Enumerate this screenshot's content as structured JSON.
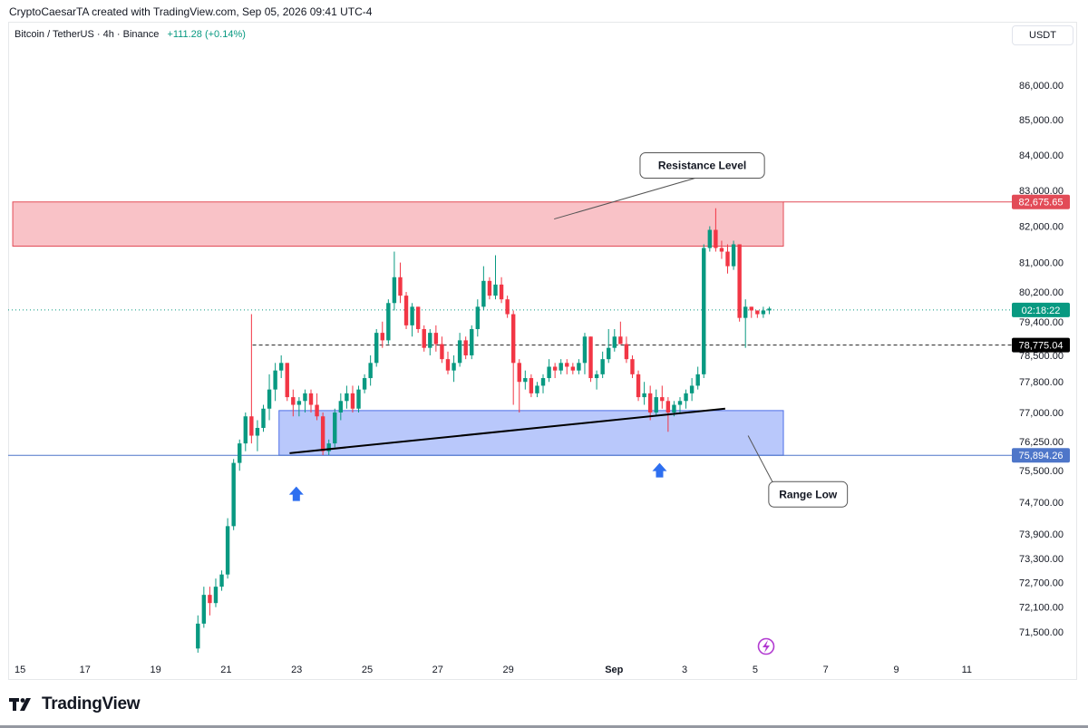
{
  "header": {
    "caption": "CryptoCaesarTA created with TradingView.com, Sep 05, 2026 09:41 UTC-4",
    "symbol": "Bitcoin / TetherUS · 4h · Binance",
    "change": "+111.28 (+0.14%)",
    "currency": "USDT"
  },
  "brand": {
    "name": "TradingView"
  },
  "colors": {
    "up": "#089981",
    "down": "#f23645",
    "resistance_fill": "#f9c2c7",
    "resistance_border": "#e24b57",
    "range_fill": "#b9c8fb",
    "range_border": "#4d6ee8",
    "blue_line": "#4e76c9",
    "arrow": "#2e6ff0"
  },
  "chart_data": {
    "type": "candlestick",
    "y_scale": "log",
    "ylim": [
      71000,
      87300
    ],
    "x_ticks": [
      {
        "label": "15",
        "d": 15
      },
      {
        "label": "17",
        "d": 17
      },
      {
        "label": "19",
        "d": 19
      },
      {
        "label": "21",
        "d": 21
      },
      {
        "label": "23",
        "d": 23
      },
      {
        "label": "25",
        "d": 25
      },
      {
        "label": "27",
        "d": 27
      },
      {
        "label": "29",
        "d": 29
      },
      {
        "label": "Sep",
        "d": 32
      },
      {
        "label": "3",
        "d": 34
      },
      {
        "label": "5",
        "d": 36
      },
      {
        "label": "7",
        "d": 38
      },
      {
        "label": "9",
        "d": 40
      },
      {
        "label": "11",
        "d": 42
      }
    ],
    "y_ticks": [
      "86,000.00",
      "85,000.00",
      "84,000.00",
      "83,000.00",
      "82,000.00",
      "81,000.00",
      "80,200.00",
      "79,400.00",
      "78,500.00",
      "77,800.00",
      "77,000.00",
      "76,250.00",
      "75,500.00",
      "74,700.00",
      "73,900.00",
      "73,300.00",
      "72,700.00",
      "72,100.00",
      "71,500.00"
    ],
    "price_labels": [
      {
        "text": "82,675.65",
        "value": 82675.65,
        "style": "resistance"
      },
      {
        "text": "02:18:22",
        "value": 79714,
        "style": "countdown"
      },
      {
        "text": "78,775.04",
        "value": 78775.04,
        "style": "dashed"
      },
      {
        "text": "75,894.26",
        "value": 75894.26,
        "style": "range"
      }
    ],
    "candles": [
      [
        71100,
        71900,
        71000,
        71700
      ],
      [
        71700,
        72600,
        71600,
        72400
      ],
      [
        72400,
        72600,
        71900,
        72200
      ],
      [
        72200,
        72800,
        72100,
        72600
      ],
      [
        72600,
        73000,
        72500,
        72900
      ],
      [
        72900,
        74300,
        72800,
        74100
      ],
      [
        74100,
        75800,
        74000,
        75700
      ],
      [
        75700,
        76300,
        75500,
        76200
      ],
      [
        76200,
        77000,
        76000,
        76900
      ],
      [
        76900,
        79600,
        76200,
        76400
      ],
      [
        76400,
        76800,
        76000,
        76600
      ],
      [
        76600,
        77200,
        76500,
        77100
      ],
      [
        77100,
        78000,
        76800,
        77600
      ],
      [
        77600,
        78300,
        77300,
        78100
      ],
      [
        78100,
        78500,
        77900,
        78300
      ],
      [
        78300,
        78300,
        77300,
        77400
      ],
      [
        77400,
        77600,
        76900,
        77200
      ],
      [
        77200,
        77400,
        76900,
        77300
      ],
      [
        77300,
        77600,
        77000,
        77500
      ],
      [
        77500,
        77600,
        77000,
        77200
      ],
      [
        77200,
        77500,
        76800,
        76900
      ],
      [
        76900,
        77000,
        75900,
        76000
      ],
      [
        76000,
        76300,
        75900,
        76200
      ],
      [
        76200,
        77100,
        76100,
        77000
      ],
      [
        77000,
        77500,
        76800,
        77300
      ],
      [
        77300,
        77700,
        77100,
        77500
      ],
      [
        77500,
        77700,
        77000,
        77100
      ],
      [
        77100,
        77700,
        77000,
        77600
      ],
      [
        77600,
        78000,
        77500,
        77900
      ],
      [
        77900,
        78500,
        77700,
        78300
      ],
      [
        78300,
        79200,
        78200,
        79100
      ],
      [
        79100,
        79400,
        78700,
        78900
      ],
      [
        78900,
        80000,
        78800,
        79900
      ],
      [
        79900,
        81300,
        79700,
        80600
      ],
      [
        80600,
        81000,
        79900,
        80100
      ],
      [
        80100,
        80200,
        79200,
        79300
      ],
      [
        79300,
        79900,
        79000,
        79800
      ],
      [
        79800,
        79800,
        79100,
        79200
      ],
      [
        79200,
        79300,
        78600,
        78700
      ],
      [
        78700,
        79200,
        78500,
        79100
      ],
      [
        79100,
        79300,
        78600,
        78800
      ],
      [
        78800,
        79000,
        78300,
        78400
      ],
      [
        78400,
        78600,
        78000,
        78100
      ],
      [
        78100,
        78500,
        77800,
        78300
      ],
      [
        78300,
        79100,
        78200,
        78900
      ],
      [
        78900,
        79000,
        78400,
        78500
      ],
      [
        78500,
        79300,
        78400,
        79200
      ],
      [
        79200,
        80000,
        79000,
        79800
      ],
      [
        79800,
        80900,
        79700,
        80500
      ],
      [
        80500,
        80600,
        80000,
        80100
      ],
      [
        80100,
        81200,
        80000,
        80400
      ],
      [
        80400,
        80600,
        79900,
        80000
      ],
      [
        80000,
        80100,
        79500,
        79600
      ],
      [
        79600,
        79700,
        77200,
        78300
      ],
      [
        78300,
        78400,
        77000,
        77800
      ],
      [
        77800,
        78100,
        77600,
        77900
      ],
      [
        77900,
        78000,
        77400,
        77500
      ],
      [
        77500,
        77800,
        77400,
        77700
      ],
      [
        77700,
        78000,
        77500,
        77900
      ],
      [
        77900,
        78400,
        77800,
        78200
      ],
      [
        78200,
        78300,
        77900,
        78100
      ],
      [
        78100,
        78400,
        78000,
        78300
      ],
      [
        78300,
        78400,
        78000,
        78200
      ],
      [
        78200,
        78300,
        78000,
        78100
      ],
      [
        78100,
        78400,
        78000,
        78300
      ],
      [
        78300,
        79100,
        78000,
        79000
      ],
      [
        79000,
        79000,
        77800,
        77900
      ],
      [
        77900,
        78100,
        77600,
        78000
      ],
      [
        78000,
        78600,
        77900,
        78400
      ],
      [
        78400,
        79200,
        78300,
        78700
      ],
      [
        78700,
        79200,
        78600,
        79000
      ],
      [
        79000,
        79400,
        78800,
        78800
      ],
      [
        78800,
        79000,
        78300,
        78400
      ],
      [
        78400,
        78500,
        77900,
        78000
      ],
      [
        78000,
        78100,
        77300,
        77400
      ],
      [
        77400,
        77800,
        77200,
        77500
      ],
      [
        77500,
        77700,
        76800,
        77000
      ],
      [
        77000,
        77600,
        76900,
        77400
      ],
      [
        77400,
        77700,
        77100,
        77300
      ],
      [
        77300,
        77400,
        76500,
        77000
      ],
      [
        77000,
        77300,
        76900,
        77200
      ],
      [
        77200,
        77400,
        77000,
        77300
      ],
      [
        77300,
        77600,
        77100,
        77500
      ],
      [
        77500,
        77900,
        77300,
        77700
      ],
      [
        77700,
        78200,
        77600,
        78000
      ],
      [
        78000,
        81500,
        77900,
        81400
      ],
      [
        81400,
        82000,
        81300,
        81900
      ],
      [
        81900,
        82500,
        81300,
        81400
      ],
      [
        81400,
        81600,
        81100,
        81300
      ],
      [
        81300,
        81500,
        80700,
        80900
      ],
      [
        80900,
        81600,
        80800,
        81500
      ],
      [
        81500,
        81500,
        79400,
        79500
      ],
      [
        79500,
        80000,
        78700,
        79800
      ],
      [
        79800,
        79800,
        79500,
        79700
      ],
      [
        79700,
        79700,
        79500,
        79600
      ],
      [
        79600,
        79800,
        79500,
        79700
      ],
      [
        79700,
        79800,
        79600,
        79750
      ]
    ],
    "resistance_zone": {
      "from": 81450,
      "to": 82675.65,
      "d_start": 14.95,
      "d_end": 36.8
    },
    "range_zone": {
      "from": 75894.26,
      "to": 77050,
      "d_start": 22.5,
      "d_end": 36.8
    },
    "trendline": {
      "from": {
        "d": 22.8,
        "v": 75950
      },
      "to": {
        "d": 35.15,
        "v": 77100
      }
    },
    "dashed_level": {
      "value": 78775.04,
      "d_start": 21.75
    },
    "dotted_level": {
      "value": 79714
    },
    "annotations": [
      {
        "text": "Resistance Level",
        "d": 34.5,
        "v": 83700,
        "tip_d": 30.3,
        "tip_v": 82200
      },
      {
        "text": "Range Low",
        "d": 37.5,
        "v": 74900,
        "tip_d": 35.8,
        "tip_v": 76400
      }
    ],
    "arrows": [
      {
        "d": 22.99,
        "v": 75100
      },
      {
        "d": 33.29,
        "v": 75700
      }
    ]
  }
}
